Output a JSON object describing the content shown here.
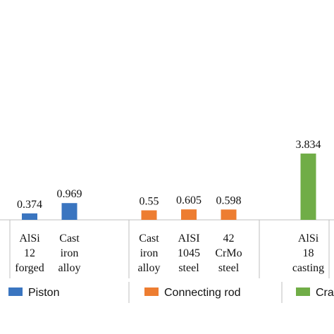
{
  "chart_data": {
    "type": "bar",
    "categories": [
      [
        "AlSi",
        "12",
        "forged"
      ],
      [
        "Cast",
        "iron",
        "alloy"
      ],
      null,
      [
        "Cast",
        "iron",
        "alloy"
      ],
      [
        "AISI",
        "1045",
        "steel"
      ],
      [
        "42",
        "CrMo",
        "steel"
      ],
      null,
      [
        "AlSi",
        "18",
        "casting"
      ]
    ],
    "series": [
      {
        "name": "Piston",
        "color": "#3a75c0",
        "values": [
          0.374,
          0.969,
          null,
          null,
          null,
          null,
          null,
          null
        ]
      },
      {
        "name": "Connecting rod",
        "color": "#ed7d31",
        "values": [
          null,
          null,
          null,
          0.55,
          0.605,
          0.598,
          null,
          null
        ]
      },
      {
        "name": "Crankshaft",
        "color": "#70ad47",
        "values": [
          null,
          null,
          null,
          null,
          null,
          null,
          null,
          3.834
        ]
      }
    ],
    "ylim": [
      0,
      11
    ]
  }
}
